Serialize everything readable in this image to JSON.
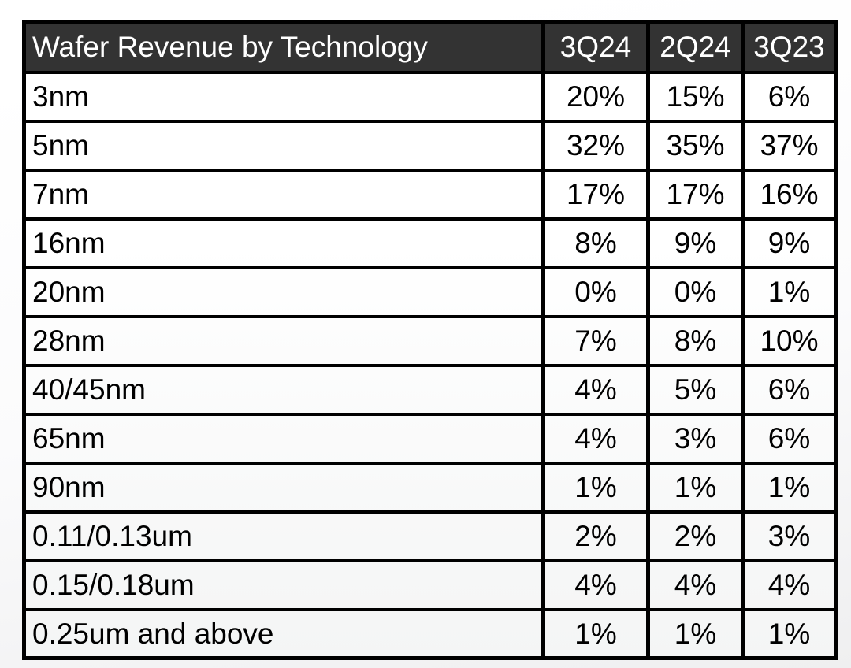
{
  "colors": {
    "header_bg": "#333333",
    "header_text": "#ffffff",
    "border": "#000000",
    "cell_text": "#000000",
    "page_background": "#ffffff"
  },
  "chart_data": {
    "type": "table",
    "title": "Wafer Revenue by Technology",
    "columns": [
      "Wafer Revenue by Technology",
      "3Q24",
      "2Q24",
      "3Q23"
    ],
    "rows": [
      {
        "technology": "3nm",
        "values": [
          "20%",
          "15%",
          "6%"
        ]
      },
      {
        "technology": "5nm",
        "values": [
          "32%",
          "35%",
          "37%"
        ]
      },
      {
        "technology": "7nm",
        "values": [
          "17%",
          "17%",
          "16%"
        ]
      },
      {
        "technology": "16nm",
        "values": [
          "8%",
          "9%",
          "9%"
        ]
      },
      {
        "technology": "20nm",
        "values": [
          "0%",
          "0%",
          "1%"
        ]
      },
      {
        "technology": "28nm",
        "values": [
          "7%",
          "8%",
          "10%"
        ]
      },
      {
        "technology": "40/45nm",
        "values": [
          "4%",
          "5%",
          "6%"
        ]
      },
      {
        "technology": "65nm",
        "values": [
          "4%",
          "3%",
          "6%"
        ]
      },
      {
        "technology": "90nm",
        "values": [
          "1%",
          "1%",
          "1%"
        ]
      },
      {
        "technology": "0.11/0.13um",
        "values": [
          "2%",
          "2%",
          "3%"
        ]
      },
      {
        "technology": "0.15/0.18um",
        "values": [
          "4%",
          "4%",
          "4%"
        ]
      },
      {
        "technology": "0.25um and above",
        "values": [
          "1%",
          "1%",
          "1%"
        ]
      }
    ]
  }
}
